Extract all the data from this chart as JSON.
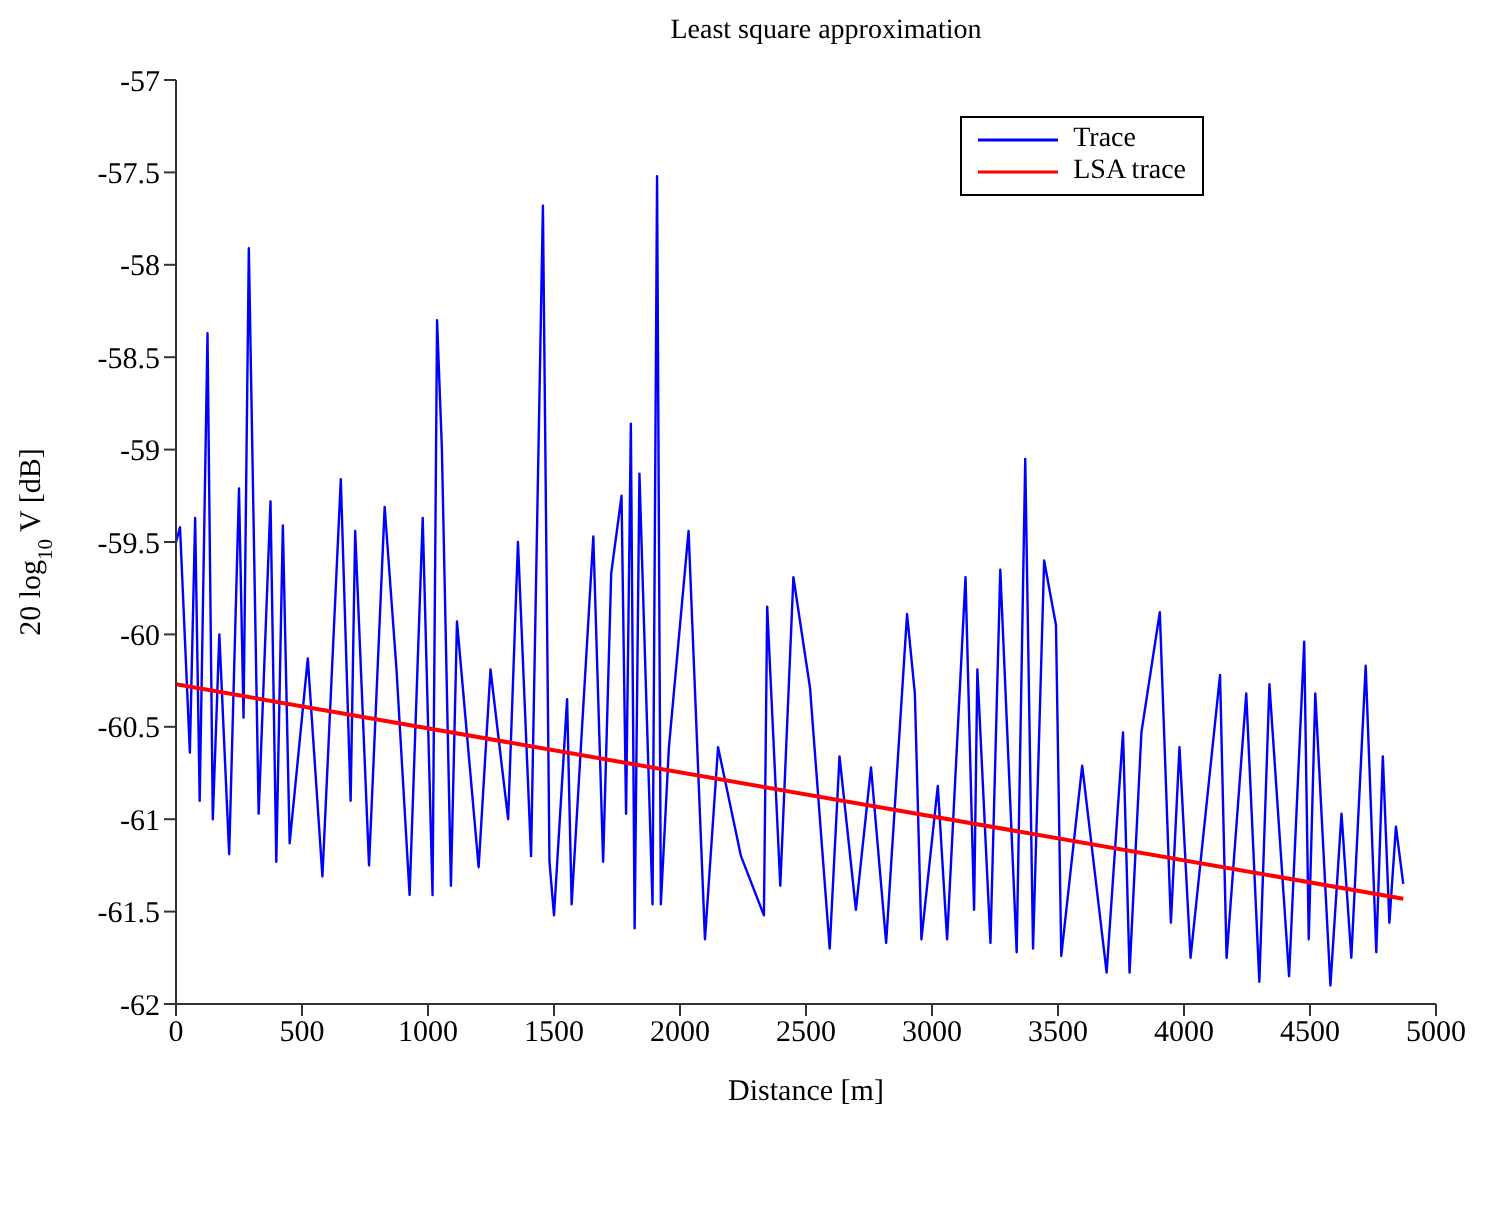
{
  "chart_data": {
    "type": "line",
    "title": "Least square approximation",
    "xlabel": "Distance [m]",
    "ylabel": "20 log$_{10}$ V [dB]",
    "xlim": [
      0,
      5000
    ],
    "xticks": [
      0,
      500,
      1000,
      1500,
      2000,
      2500,
      3000,
      3500,
      4000,
      4500,
      5000
    ],
    "ylim": [
      -62,
      -57
    ],
    "yticks": [
      -62,
      -61.5,
      -61,
      -60.5,
      -60,
      -59.5,
      -59,
      -58.5,
      -58,
      -57.5,
      -57
    ],
    "legend": "top right",
    "grid": false,
    "marker": "none",
    "line_style": "solid",
    "series": [
      {
        "name": "Trace",
        "color": "#0000ff",
        "x": [
          0,
          16,
          55,
          76,
          94,
          125,
          146,
          172,
          211,
          250,
          268,
          289,
          328,
          375,
          398,
          424,
          451,
          523,
          581,
          654,
          693,
          711,
          766,
          828,
          875,
          927,
          979,
          1018,
          1036,
          1055,
          1091,
          1115,
          1201,
          1248,
          1318,
          1357,
          1409,
          1456,
          1482,
          1500,
          1552,
          1570,
          1656,
          1695,
          1727,
          1768,
          1786,
          1805,
          1820,
          1839,
          1891,
          1909,
          1924,
          1956,
          2034,
          2099,
          2151,
          2242,
          2333,
          2346,
          2398,
          2450,
          2516,
          2594,
          2633,
          2698,
          2758,
          2818,
          2901,
          2932,
          2958,
          3023,
          3060,
          3133,
          3167,
          3180,
          3232,
          3271,
          3336,
          3370,
          3401,
          3445,
          3492,
          3513,
          3596,
          3693,
          3758,
          3784,
          3831,
          3904,
          3948,
          3982,
          4026,
          4143,
          4169,
          4247,
          4299,
          4339,
          4417,
          4477,
          4495,
          4521,
          4581,
          4625,
          4664,
          4721,
          4763,
          4789,
          4815,
          4841,
          4870
        ],
        "values": [
          -59.5,
          -59.42,
          -60.64,
          -59.37,
          -60.9,
          -58.37,
          -61.0,
          -60.0,
          -61.19,
          -59.21,
          -60.45,
          -57.91,
          -60.97,
          -59.28,
          -61.23,
          -59.41,
          -61.13,
          -60.13,
          -61.31,
          -59.16,
          -60.9,
          -59.44,
          -61.25,
          -59.31,
          -60.19,
          -61.41,
          -59.37,
          -61.41,
          -58.3,
          -58.99,
          -61.36,
          -59.93,
          -61.26,
          -60.19,
          -61.0,
          -59.5,
          -61.2,
          -57.68,
          -61.23,
          -61.52,
          -60.35,
          -61.46,
          -59.47,
          -61.23,
          -59.67,
          -59.25,
          -60.97,
          -58.86,
          -61.59,
          -59.13,
          -61.46,
          -57.52,
          -61.46,
          -60.61,
          -59.44,
          -61.65,
          -60.61,
          -61.2,
          -61.52,
          -59.85,
          -61.36,
          -59.69,
          -60.29,
          -61.7,
          -60.66,
          -61.49,
          -60.72,
          -61.67,
          -59.89,
          -60.32,
          -61.65,
          -60.82,
          -61.65,
          -59.69,
          -61.49,
          -60.19,
          -61.67,
          -59.65,
          -61.72,
          -59.05,
          -61.7,
          -59.6,
          -59.95,
          -61.74,
          -60.71,
          -61.83,
          -60.53,
          -61.83,
          -60.53,
          -59.88,
          -61.56,
          -60.61,
          -61.75,
          -60.22,
          -61.75,
          -60.32,
          -61.88,
          -60.27,
          -61.85,
          -60.04,
          -61.65,
          -60.32,
          -61.9,
          -60.97,
          -61.75,
          -60.17,
          -61.72,
          -60.66,
          -61.56,
          -61.04,
          -61.35
        ]
      },
      {
        "name": "LSA trace",
        "color": "#ff0000",
        "x": [
          0,
          4870
        ],
        "values": [
          -60.27,
          -61.43
        ]
      }
    ]
  }
}
